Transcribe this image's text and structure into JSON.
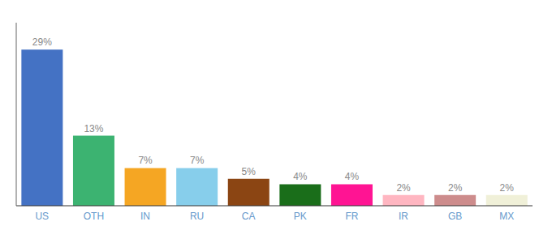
{
  "chart_data": {
    "type": "bar",
    "categories": [
      "US",
      "OTH",
      "IN",
      "RU",
      "CA",
      "PK",
      "FR",
      "IR",
      "GB",
      "MX"
    ],
    "values": [
      29,
      13,
      7,
      7,
      5,
      4,
      4,
      2,
      2,
      2
    ],
    "value_labels": [
      "29%",
      "13%",
      "7%",
      "7%",
      "5%",
      "4%",
      "4%",
      "2%",
      "2%",
      "2%"
    ],
    "colors": [
      "#4472c4",
      "#3cb371",
      "#f5a623",
      "#87ceeb",
      "#8b4513",
      "#1a6e1a",
      "#ff1493",
      "#ffb6c1",
      "#cd8c8c",
      "#f0f0d8"
    ],
    "ylim": [
      0,
      34
    ],
    "data_labels": true,
    "tick_labels": "x",
    "grid": false
  }
}
